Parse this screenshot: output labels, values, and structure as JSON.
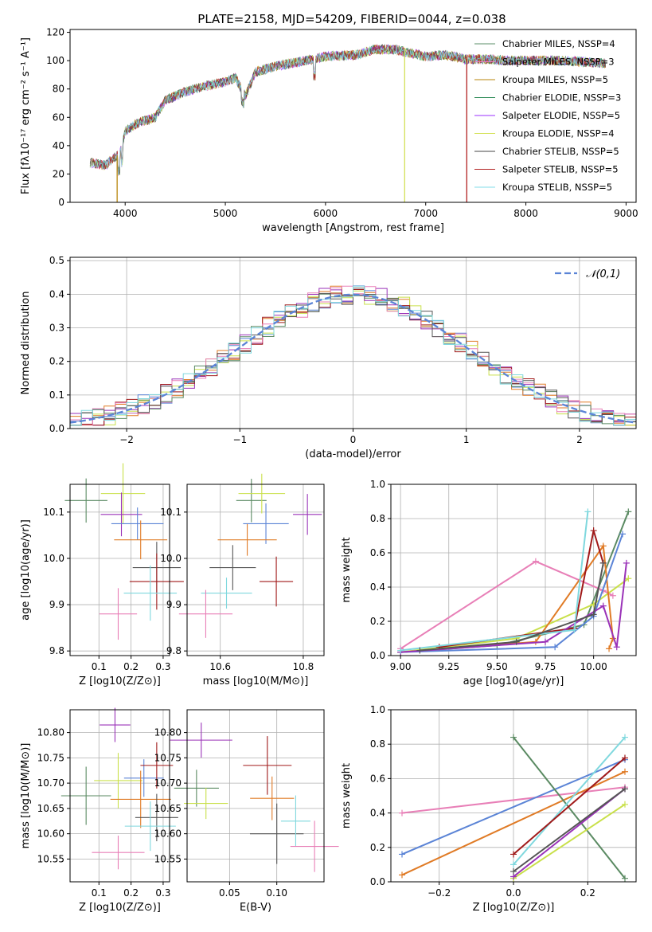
{
  "title": "PLATE=2158, MJD=54209, FIBERID=0044, z=0.038",
  "colors": {
    "c0": "#5b8f6a",
    "c1": "#e67fbf",
    "c2": "#b8860b",
    "c3": "#2e8b57",
    "c4": "#9b30ff",
    "c5": "#d4e157",
    "c6": "#444444",
    "c7": "#b22222",
    "c8": "#80deea",
    "steelblue": "#5b84d6",
    "orange": "#e07b26",
    "olive": "#c9e04a",
    "purple": "#9a32b8",
    "darkred": "#a01a1a",
    "pink": "#e87fb7",
    "green": "#5a8a62",
    "gray": "#555555",
    "cyan": "#7fd8de"
  },
  "chart_data": [
    {
      "type": "line",
      "xlabel": "wavelength [Angstrom, rest frame]",
      "ylabel": "Flux [fλ10⁻¹⁷ erg cm⁻² s⁻¹ A⁻¹]",
      "xlim": [
        3450,
        9100
      ],
      "ylim": [
        0,
        122
      ],
      "xticks": [
        "4000",
        "5000",
        "6000",
        "7000",
        "8000",
        "9000"
      ],
      "yticks": [
        "0",
        "20",
        "40",
        "60",
        "80",
        "100",
        "120"
      ],
      "legend_position": "top-right",
      "legend": [
        "Chabrier MILES, NSSP=4",
        "Salpeter MILES, NSSP=3",
        "Kroupa MILES, NSSP=5",
        "Chabrier ELODIE, NSSP=3",
        "Salpeter ELODIE, NSSP=5",
        "Kroupa ELODIE, NSSP=4",
        "Chabrier STELIB, NSSP=5",
        "Salpeter STELIB, NSSP=5",
        "Kroupa STELIB, NSSP=5"
      ],
      "spectrum": {
        "x": [
          3650,
          3800,
          3950,
          4000,
          4100,
          4300,
          4400,
          4600,
          4800,
          5000,
          5100,
          5200,
          5300,
          5500,
          5800,
          6000,
          6300,
          6500,
          6700,
          6800,
          7000,
          7200,
          7400,
          7600,
          7800,
          8000,
          8200,
          8400,
          8600,
          8800
        ],
        "y": [
          28,
          26,
          35,
          50,
          55,
          60,
          72,
          78,
          82,
          85,
          88,
          75,
          92,
          96,
          100,
          103,
          104,
          108,
          108,
          106,
          103,
          104,
          101,
          101,
          100,
          100,
          100,
          100,
          99,
          98
        ]
      }
    },
    {
      "type": "bar",
      "xlabel": "(data-model)/error",
      "ylabel": "Normed distribution",
      "xlim": [
        -2.5,
        2.5
      ],
      "ylim": [
        0,
        0.51
      ],
      "xticks": [
        "−2",
        "−1",
        "0",
        "1",
        "2"
      ],
      "yticks": [
        "0.0",
        "0.1",
        "0.2",
        "0.3",
        "0.4",
        "0.5"
      ],
      "legend": [
        "𝒩(0,1)"
      ],
      "legend_position": "top-right",
      "grid": true
    },
    {
      "type": "scatter",
      "xlabel": "Z [log10(Z/Z⊙)]",
      "ylabel": "age  [log10(age/yr)]",
      "xlim": [
        0.01,
        0.32
      ],
      "ylim": [
        9.79,
        10.16
      ],
      "xticks": [
        "0.1",
        "0.2",
        "0.3"
      ],
      "yticks": [
        "9.8",
        "9.9",
        "10.0",
        "10.1"
      ],
      "points": [
        {
          "x": 0.06,
          "y": 10.125,
          "c": "green"
        },
        {
          "x": 0.175,
          "y": 10.14,
          "c": "olive"
        },
        {
          "x": 0.17,
          "y": 10.095,
          "c": "purple"
        },
        {
          "x": 0.22,
          "y": 10.075,
          "c": "steelblue"
        },
        {
          "x": 0.23,
          "y": 10.04,
          "c": "orange"
        },
        {
          "x": 0.28,
          "y": 9.98,
          "c": "gray"
        },
        {
          "x": 0.28,
          "y": 9.95,
          "c": "darkred"
        },
        {
          "x": 0.26,
          "y": 9.925,
          "c": "cyan"
        },
        {
          "x": 0.16,
          "y": 9.88,
          "c": "pink"
        }
      ]
    },
    {
      "type": "scatter",
      "xlabel": "mass [log10(M/M⊙)]",
      "ylabel": "",
      "xlim": [
        10.52,
        10.85
      ],
      "ylim": [
        9.79,
        10.16
      ],
      "xticks": [
        "10.6",
        "10.8"
      ],
      "yticks": [
        "9.8",
        "9.9",
        "10.0",
        "10.1"
      ],
      "points": [
        {
          "x": 10.675,
          "y": 10.125,
          "c": "green"
        },
        {
          "x": 10.7,
          "y": 10.14,
          "c": "olive"
        },
        {
          "x": 10.81,
          "y": 10.095,
          "c": "purple"
        },
        {
          "x": 10.71,
          "y": 10.075,
          "c": "steelblue"
        },
        {
          "x": 10.665,
          "y": 10.04,
          "c": "orange"
        },
        {
          "x": 10.63,
          "y": 9.98,
          "c": "gray"
        },
        {
          "x": 10.735,
          "y": 9.95,
          "c": "darkred"
        },
        {
          "x": 10.615,
          "y": 9.925,
          "c": "cyan"
        },
        {
          "x": 10.565,
          "y": 9.88,
          "c": "pink"
        }
      ]
    },
    {
      "type": "line",
      "xlabel": "age  [log10(age/yr)]",
      "ylabel": "mass weight",
      "xlim": [
        8.95,
        10.22
      ],
      "ylim": [
        0,
        1
      ],
      "xticks": [
        "9.00",
        "9.25",
        "9.50",
        "9.75",
        "10.00"
      ],
      "yticks": [
        "0.0",
        "0.2",
        "0.4",
        "0.6",
        "0.8",
        "1.0"
      ],
      "series": [
        {
          "c": "pink",
          "x": [
            9.0,
            9.7,
            10.05,
            10.1
          ],
          "y": [
            0.04,
            0.55,
            0.38,
            0.35
          ]
        },
        {
          "c": "green",
          "x": [
            9.0,
            9.5,
            9.95,
            10.18
          ],
          "y": [
            0.02,
            0.06,
            0.18,
            0.84
          ]
        },
        {
          "c": "olive",
          "x": [
            9.0,
            9.6,
            10.0,
            10.18
          ],
          "y": [
            0.02,
            0.1,
            0.3,
            0.45
          ]
        },
        {
          "c": "orange",
          "x": [
            9.0,
            9.7,
            10.05,
            10.1,
            10.08
          ],
          "y": [
            0.02,
            0.08,
            0.64,
            0.1,
            0.04
          ]
        },
        {
          "c": "steelblue",
          "x": [
            9.0,
            9.8,
            10.0,
            10.15
          ],
          "y": [
            0.02,
            0.05,
            0.23,
            0.71
          ]
        },
        {
          "c": "darkred",
          "x": [
            9.2,
            9.9,
            10.0,
            10.05
          ],
          "y": [
            0.05,
            0.16,
            0.73,
            0.54
          ]
        },
        {
          "c": "purple",
          "x": [
            9.0,
            9.75,
            10.05,
            10.12,
            10.17
          ],
          "y": [
            0.02,
            0.08,
            0.29,
            0.05,
            0.54
          ]
        },
        {
          "c": "cyan",
          "x": [
            9.0,
            9.9,
            9.97
          ],
          "y": [
            0.03,
            0.15,
            0.84
          ]
        },
        {
          "c": "gray",
          "x": [
            9.1,
            9.6,
            10.0,
            10.05
          ],
          "y": [
            0.03,
            0.08,
            0.24,
            0.54
          ]
        }
      ]
    },
    {
      "type": "scatter",
      "xlabel": "Z [log10(Z/Z⊙)]",
      "ylabel": "mass [log10(M/M⊙)]",
      "xlim": [
        0.01,
        0.32
      ],
      "ylim": [
        10.505,
        10.845
      ],
      "xticks": [
        "0.1",
        "0.2",
        "0.3"
      ],
      "yticks": [
        "10.55",
        "10.60",
        "10.65",
        "10.70",
        "10.75",
        "10.80"
      ],
      "points": [
        {
          "x": 0.06,
          "y": 10.675,
          "c": "green"
        },
        {
          "x": 0.16,
          "y": 10.705,
          "c": "olive"
        },
        {
          "x": 0.15,
          "y": 10.815,
          "c": "purple"
        },
        {
          "x": 0.24,
          "y": 10.71,
          "c": "steelblue"
        },
        {
          "x": 0.23,
          "y": 10.668,
          "c": "orange"
        },
        {
          "x": 0.28,
          "y": 10.632,
          "c": "gray"
        },
        {
          "x": 0.28,
          "y": 10.735,
          "c": "darkred"
        },
        {
          "x": 0.26,
          "y": 10.615,
          "c": "cyan"
        },
        {
          "x": 0.16,
          "y": 10.563,
          "c": "pink"
        }
      ]
    },
    {
      "type": "scatter",
      "xlabel": "E(B-V)",
      "ylabel": "",
      "xlim": [
        0.005,
        0.15
      ],
      "ylim": [
        10.505,
        10.845
      ],
      "xticks": [
        "0.05",
        "0.10"
      ],
      "yticks": [
        "10.55",
        "10.60",
        "10.65",
        "10.70",
        "10.75",
        "10.80"
      ],
      "points": [
        {
          "x": 0.015,
          "y": 10.69,
          "c": "green"
        },
        {
          "x": 0.025,
          "y": 10.66,
          "c": "olive"
        },
        {
          "x": 0.02,
          "y": 10.785,
          "c": "purple"
        },
        {
          "x": 0.09,
          "y": 10.735,
          "c": "darkred"
        },
        {
          "x": 0.095,
          "y": 10.67,
          "c": "orange"
        },
        {
          "x": 0.1,
          "y": 10.6,
          "c": "gray"
        },
        {
          "x": 0.12,
          "y": 10.625,
          "c": "cyan"
        },
        {
          "x": 0.14,
          "y": 10.575,
          "c": "pink"
        }
      ]
    },
    {
      "type": "line",
      "xlabel": "Z [log10(Z/Z⊙)]",
      "ylabel": "mass weight",
      "xlim": [
        -0.33,
        0.33
      ],
      "ylim": [
        0,
        1
      ],
      "xticks": [
        "−0.2",
        "0.0",
        "0.2"
      ],
      "yticks": [
        "0.0",
        "0.2",
        "0.4",
        "0.6",
        "0.8",
        "1.0"
      ],
      "series": [
        {
          "c": "pink",
          "x": [
            -0.3,
            0.3
          ],
          "y": [
            0.4,
            0.55
          ]
        },
        {
          "c": "steelblue",
          "x": [
            -0.3,
            0.3
          ],
          "y": [
            0.16,
            0.71
          ]
        },
        {
          "c": "orange",
          "x": [
            -0.3,
            0.3
          ],
          "y": [
            0.04,
            0.64
          ]
        },
        {
          "c": "green",
          "x": [
            0.0,
            0.3
          ],
          "y": [
            0.84,
            0.02
          ]
        },
        {
          "c": "cyan",
          "x": [
            0.0,
            0.3
          ],
          "y": [
            0.1,
            0.84
          ]
        },
        {
          "c": "darkred",
          "x": [
            0.0,
            0.3
          ],
          "y": [
            0.16,
            0.72
          ]
        },
        {
          "c": "olive",
          "x": [
            0.0,
            0.3
          ],
          "y": [
            0.02,
            0.45
          ]
        },
        {
          "c": "purple",
          "x": [
            0.0,
            0.3
          ],
          "y": [
            0.03,
            0.54
          ]
        },
        {
          "c": "gray",
          "x": [
            0.0,
            0.3
          ],
          "y": [
            0.06,
            0.54
          ]
        }
      ]
    }
  ]
}
